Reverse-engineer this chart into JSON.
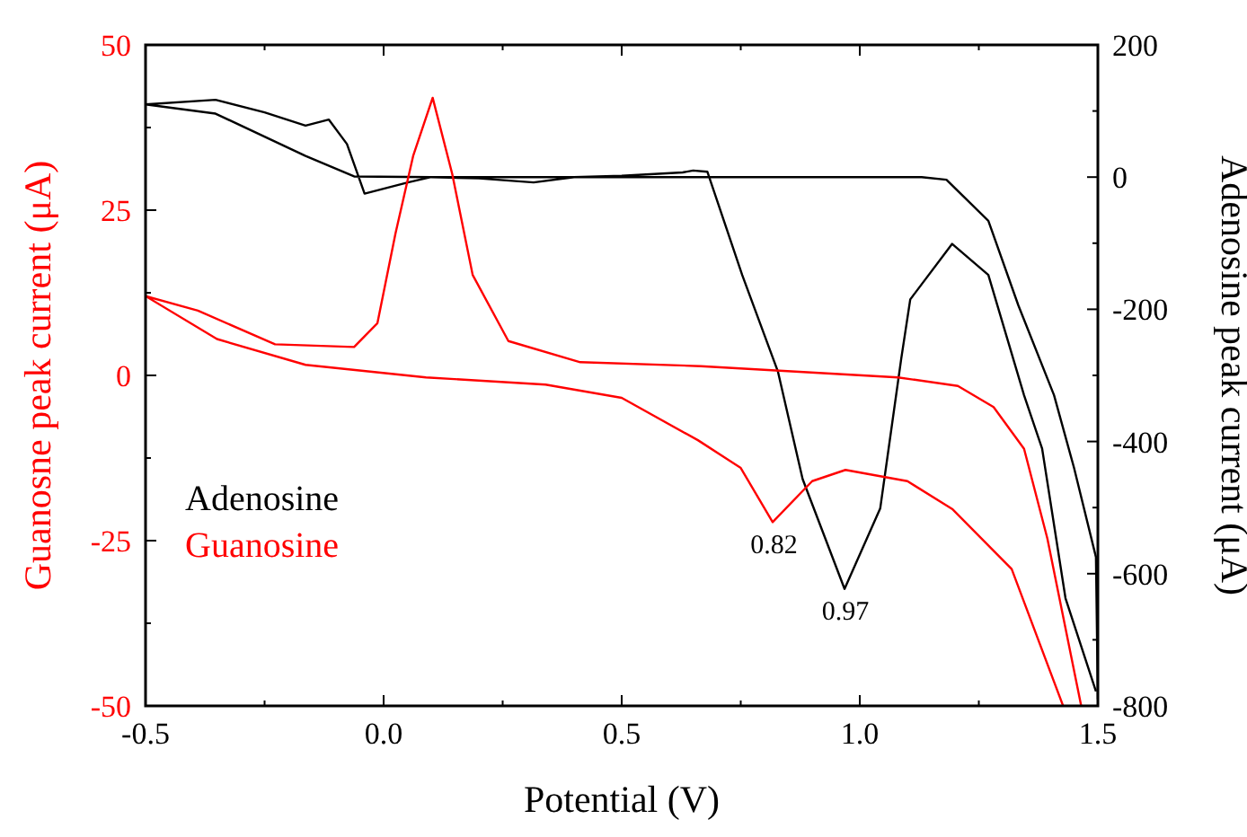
{
  "chart_data": {
    "type": "line",
    "xlabel": "Potential (V)",
    "ylabel": "Guanosne peak current (μA)",
    "y2label": "Adenosine peak current (μA)",
    "xlim": [
      -0.5,
      1.5
    ],
    "xticks": [
      {
        "value": -0.5,
        "label": "-0.5"
      },
      {
        "value": 0,
        "label": "0.0"
      },
      {
        "value": 0.5,
        "label": "0.5"
      },
      {
        "value": 1,
        "label": "1.0"
      },
      {
        "value": 1.5,
        "label": "1.5"
      }
    ],
    "ylim": [
      -50,
      50
    ],
    "yticks": [
      -50,
      -25,
      0,
      25,
      50
    ],
    "y2lim": [
      -800,
      200
    ],
    "y2ticks": [
      -800,
      -600,
      -400,
      -200,
      0,
      200
    ],
    "legend": "left",
    "grid": false,
    "annotations": [
      {
        "text": "0.82",
        "x": 0.82,
        "y": -22
      },
      {
        "text": "0.97",
        "x": 0.97,
        "y": -32
      }
    ],
    "series": [
      {
        "name": "Adenosine",
        "color": "#000000",
        "axis": "y2",
        "x": [
          1.496,
          1.432,
          1.383,
          1.345,
          1.27,
          1.194,
          1.106,
          1.087,
          1.043,
          0.968,
          0.88,
          0.828,
          0.753,
          0.68,
          0.65,
          0.628,
          0.5,
          0.4,
          0.315,
          0.2,
          0.1,
          0.051,
          -0.04,
          -0.077,
          -0.115,
          -0.164,
          -0.25,
          -0.353,
          -0.5,
          -0.353,
          -0.164,
          -0.062,
          0.1,
          0.5,
          1.0,
          1.13,
          1.182,
          1.27,
          1.333,
          1.408,
          1.45,
          1.496,
          1.5
        ],
        "values": [
          -778,
          -637,
          -411,
          -330,
          -148,
          -101,
          -185,
          -275,
          -501,
          -623,
          -457,
          -294,
          -148,
          8,
          10,
          7,
          2,
          0,
          -8,
          -2,
          0,
          -8,
          -25,
          50,
          87,
          78,
          98,
          117,
          110,
          96,
          32,
          1,
          0,
          0,
          0,
          0,
          -4,
          -66,
          -194,
          -330,
          -440,
          -575,
          -790
        ]
      },
      {
        "name": "Guanosine",
        "color": "#ff0000",
        "axis": "y",
        "x": [
          1.427,
          1.319,
          1.194,
          1.1,
          0.97,
          0.9,
          0.817,
          0.75,
          0.66,
          0.5,
          0.34,
          0.089,
          -0.164,
          -0.35,
          -0.5,
          -0.39,
          -0.228,
          -0.062,
          -0.013,
          0.025,
          0.062,
          0.103,
          0.144,
          0.187,
          0.262,
          0.413,
          0.666,
          1.08,
          1.206,
          1.281,
          1.345,
          1.394,
          1.465
        ],
        "values": [
          -50,
          -29.3,
          -20.2,
          -16,
          -14.3,
          -16,
          -22.2,
          -14,
          -9.8,
          -3.4,
          -1.4,
          -0.3,
          1.6,
          5.5,
          12,
          9.8,
          4.7,
          4.3,
          7.9,
          21.5,
          33.2,
          42,
          30.5,
          15.2,
          5.2,
          2,
          1.4,
          -0.3,
          -1.6,
          -4.8,
          -11.1,
          -24.7,
          -50
        ]
      }
    ]
  }
}
